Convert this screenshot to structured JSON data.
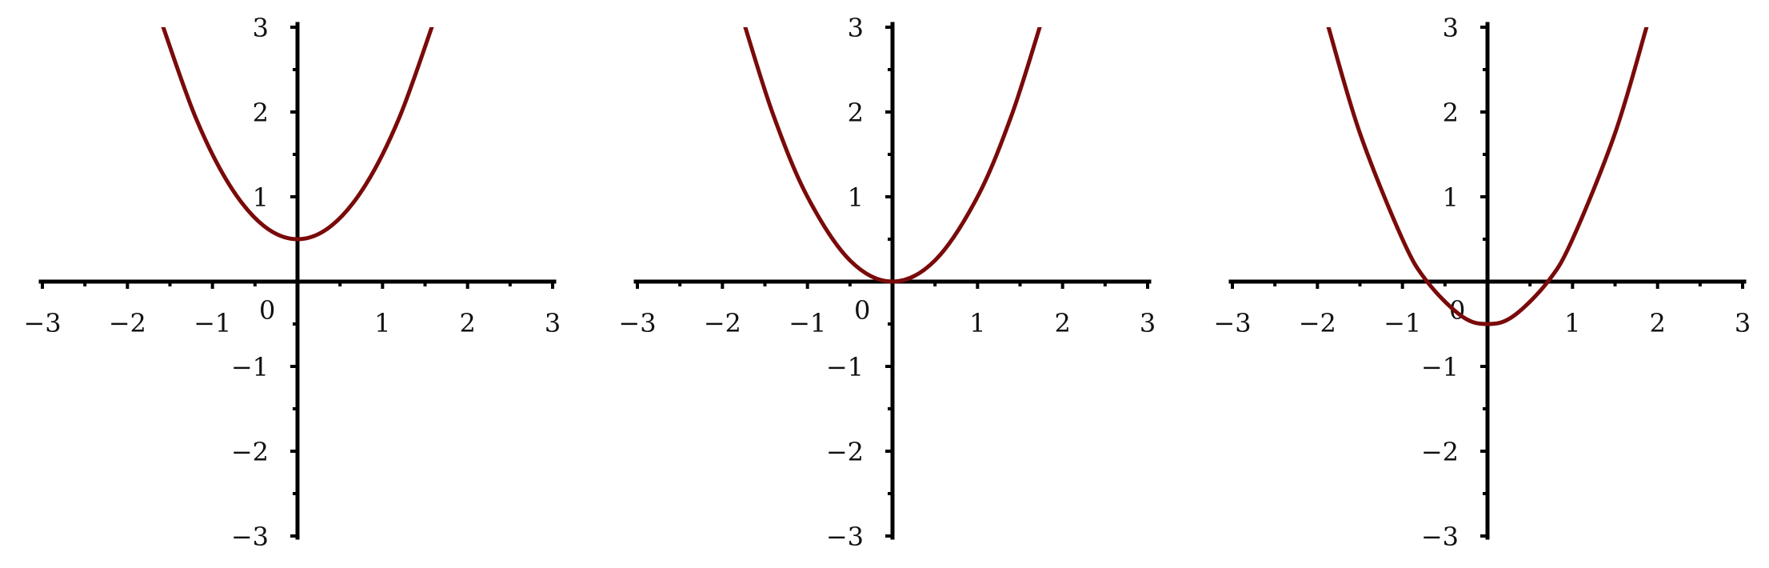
{
  "colors": {
    "curve": "#7a0a0a",
    "axis": "#000000",
    "background": "#ffffff"
  },
  "chart_data": [
    {
      "type": "line",
      "title": "",
      "xlabel": "",
      "ylabel": "",
      "xlim": [
        -3,
        3
      ],
      "ylim": [
        -3,
        3
      ],
      "grid": false,
      "x_ticks": [
        -3,
        -2,
        -1,
        1,
        2,
        3
      ],
      "x_tick_labels": [
        "−3",
        "−2",
        "−1",
        "1",
        "2",
        "3"
      ],
      "y_ticks": [
        -3,
        -2,
        -1,
        1,
        2,
        3
      ],
      "y_tick_labels": [
        "−3",
        "−2",
        "−1",
        "1",
        "2",
        "3"
      ],
      "origin_label": "0",
      "series": [
        {
          "x": [
            -1.6,
            -1.2,
            -0.8,
            -0.4,
            0,
            0.4,
            0.8,
            1.2,
            1.6
          ],
          "y": [
            3.06,
            1.94,
            1.14,
            0.66,
            0.5,
            0.66,
            1.14,
            1.94,
            3.06
          ],
          "color": "#7a0a0a"
        }
      ]
    },
    {
      "type": "line",
      "title": "",
      "xlabel": "",
      "ylabel": "",
      "xlim": [
        -3,
        3
      ],
      "ylim": [
        -3,
        3
      ],
      "grid": false,
      "x_ticks": [
        -3,
        -2,
        -1,
        1,
        2,
        3
      ],
      "x_tick_labels": [
        "−3",
        "−2",
        "−1",
        "1",
        "2",
        "3"
      ],
      "y_ticks": [
        -3,
        -2,
        -1,
        1,
        2,
        3
      ],
      "y_tick_labels": [
        "−3",
        "−2",
        "−1",
        "1",
        "2",
        "3"
      ],
      "origin_label": "0",
      "series": [
        {
          "x": [
            -1.75,
            -1.4,
            -1.0,
            -0.5,
            0,
            0.5,
            1.0,
            1.4,
            1.75
          ],
          "y": [
            3.06,
            1.96,
            1.0,
            0.25,
            0,
            0.25,
            1.0,
            1.96,
            3.06
          ],
          "color": "#7a0a0a"
        }
      ]
    },
    {
      "type": "line",
      "title": "",
      "xlabel": "",
      "ylabel": "",
      "xlim": [
        -3,
        3
      ],
      "ylim": [
        -3,
        3
      ],
      "grid": false,
      "x_ticks": [
        -3,
        -2,
        -1,
        1,
        2,
        3
      ],
      "x_tick_labels": [
        "−3",
        "−2",
        "−1",
        "1",
        "2",
        "3"
      ],
      "y_ticks": [
        -3,
        -2,
        -1,
        1,
        2,
        3
      ],
      "y_tick_labels": [
        "−3",
        "−2",
        "−1",
        "1",
        "2",
        "3"
      ],
      "origin_label": "0",
      "series": [
        {
          "x": [
            -1.87,
            -1.5,
            -1.0,
            -0.71,
            -0.3,
            0,
            0.3,
            0.71,
            1.0,
            1.5,
            1.87
          ],
          "y": [
            3.0,
            1.75,
            0.5,
            0.0,
            -0.41,
            -0.5,
            -0.41,
            0.0,
            0.5,
            1.75,
            3.0
          ],
          "color": "#7a0a0a"
        }
      ]
    }
  ]
}
